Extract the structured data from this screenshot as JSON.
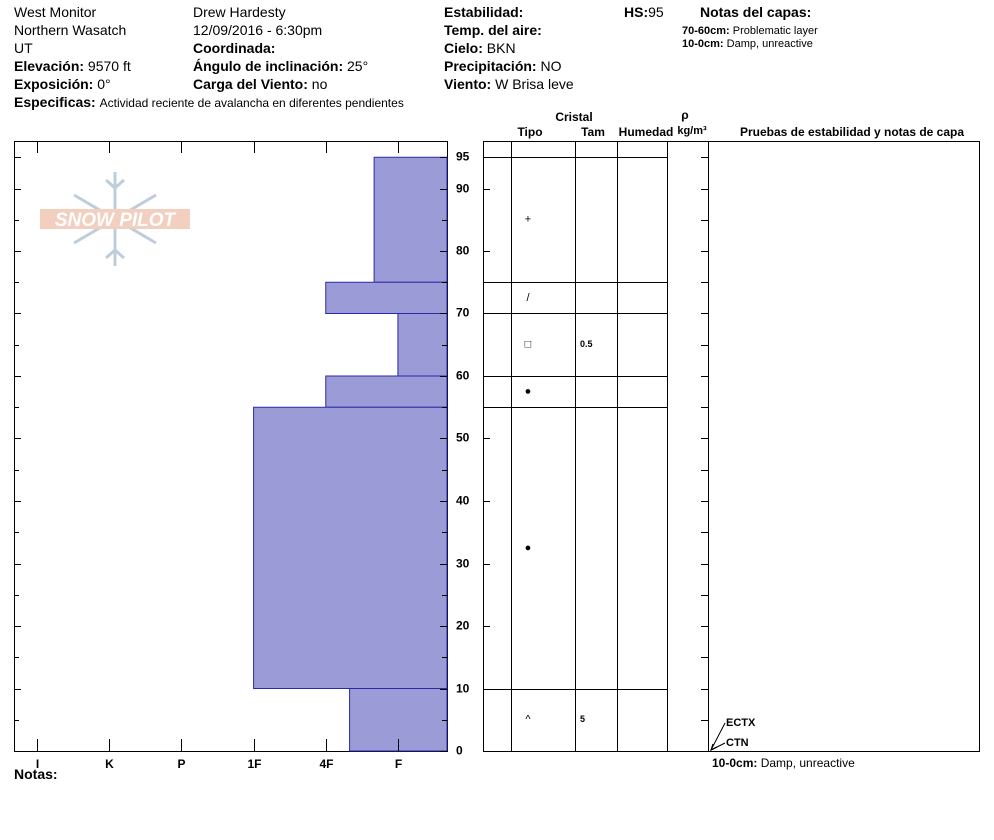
{
  "header": {
    "location": "West Monitor",
    "range": "Northern Wasatch",
    "state": "UT",
    "elevation": {
      "label": "Elevación:",
      "value": "9570 ft"
    },
    "aspect": {
      "label": "Exposición:",
      "value": "0°"
    },
    "specifics": {
      "label": "Especificas:",
      "value": "Actividad reciente de avalancha en diferentes pendientes"
    },
    "observer": "Drew Hardesty",
    "datetime": "12/09/2016 - 6:30pm",
    "coordinates": {
      "label": "Coordinada:"
    },
    "slope": {
      "label": "Ángulo de inclinación:",
      "value": "25°"
    },
    "wind_loading": {
      "label": "Carga del Viento:",
      "value": "no"
    },
    "stability": {
      "label": "Estabilidad:"
    },
    "air_temp": {
      "label": "Temp. del aire:"
    },
    "sky": {
      "label": "Cielo:",
      "value": "BKN"
    },
    "precip": {
      "label": "Precipitación:",
      "value": "NO"
    },
    "wind": {
      "label": "Viento:",
      "value": "W Brisa leve"
    },
    "hs": {
      "label": "HS:",
      "value": 95
    },
    "layer_notes": {
      "title": "Notas del capas:",
      "items": [
        {
          "range": "70-60cm:",
          "text": "Problematic layer"
        },
        {
          "range": "10-0cm:",
          "text": "Damp, unreactive"
        }
      ]
    }
  },
  "logo": "SNOW PILOT",
  "chart_data": {
    "type": "hardness_profile",
    "xlim": [
      6.32,
      0.32
    ],
    "xticks": [
      {
        "value": 6,
        "label": "I"
      },
      {
        "value": 5,
        "label": "K"
      },
      {
        "value": 4,
        "label": "P"
      },
      {
        "value": 3,
        "label": "1F"
      },
      {
        "value": 2,
        "label": "4F"
      },
      {
        "value": 1,
        "label": "F"
      }
    ],
    "ylim": [
      0,
      97.6
    ],
    "yticks": [
      0,
      10,
      20,
      30,
      40,
      50,
      60,
      70,
      80,
      90,
      95
    ],
    "minor_yticks": [
      5,
      15,
      25,
      35,
      45,
      55,
      65,
      75,
      85
    ],
    "color": "#9b9bd8",
    "layers": [
      {
        "top": 95,
        "bottom": 75,
        "hardness": 1.33
      },
      {
        "top": 75,
        "bottom": 70,
        "hardness": 2
      },
      {
        "top": 70,
        "bottom": 60,
        "hardness": 1
      },
      {
        "top": 60,
        "bottom": 55,
        "hardness": 2
      },
      {
        "top": 55,
        "bottom": 10,
        "hardness": 3
      },
      {
        "top": 10,
        "bottom": 0,
        "hardness": 1.67
      }
    ]
  },
  "grain_table": {
    "headers": {
      "crystal": "Cristal",
      "type": "Tipo",
      "size": "Tam",
      "moisture": "Humedad",
      "rho": "ρ",
      "density_unit": "kg/m³",
      "tests": "Pruebas de estabilidad y notas de capa"
    },
    "layers": [
      {
        "grain": "+"
      },
      {
        "grain": "/"
      },
      {
        "grain": "□",
        "size": "0.5"
      },
      {
        "grain": "●"
      },
      {
        "grain": "●"
      },
      {
        "grain": "^",
        "size": "5"
      }
    ]
  },
  "tests": [
    {
      "label": "ECTX",
      "depth": 0
    },
    {
      "label": "CTN",
      "depth": 0
    }
  ],
  "test_note": {
    "range": "10-0cm:",
    "text": "Damp, unreactive"
  },
  "notes_label": "Notas:"
}
